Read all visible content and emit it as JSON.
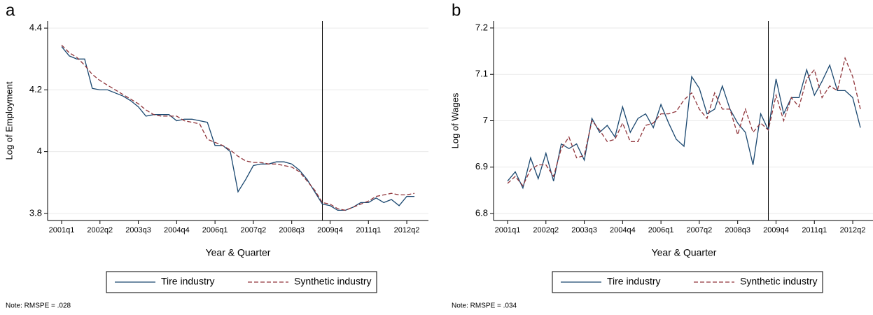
{
  "chart_data": [
    {
      "type": "line",
      "panel_label": "a",
      "y_label": "Log of Employment",
      "x_label": "Year & Quarter",
      "note": "Note: RMSPE = .028",
      "categories": [
        "2001q1",
        null,
        null,
        null,
        null,
        "2002q2",
        null,
        null,
        null,
        null,
        "2003q3",
        null,
        null,
        null,
        null,
        "2004q4",
        null,
        null,
        null,
        null,
        "2006q1",
        null,
        null,
        null,
        null,
        "2007q2",
        null,
        null,
        null,
        null,
        "2008q3",
        null,
        null,
        null,
        null,
        "2009q4",
        null,
        null,
        null,
        null,
        "2011q1",
        null,
        null,
        null,
        null,
        "2012q2",
        null
      ],
      "vline": 34,
      "ylim": [
        3.777,
        4.423
      ],
      "yticks": [
        3.8,
        4,
        4.2,
        4.4
      ],
      "grid": true,
      "series": [
        {
          "name": "Tire industry",
          "color": "#1a476f",
          "dashed": false,
          "values": [
            4.34,
            4.31,
            4.3,
            4.3,
            4.205,
            4.2,
            4.2,
            4.19,
            4.18,
            4.165,
            4.145,
            4.115,
            4.12,
            4.12,
            4.12,
            4.1,
            4.105,
            4.105,
            4.1,
            4.095,
            4.02,
            4.02,
            4.0,
            3.87,
            3.91,
            3.955,
            3.96,
            3.96,
            3.967,
            3.967,
            3.96,
            3.94,
            3.91,
            3.87,
            3.83,
            3.825,
            3.81,
            3.81,
            3.82,
            3.835,
            3.835,
            3.85,
            3.835,
            3.845,
            3.825,
            3.855,
            3.855
          ]
        },
        {
          "name": "Synthetic industry",
          "color": "#90353b",
          "dashed": true,
          "values": [
            4.345,
            4.32,
            4.305,
            4.28,
            4.25,
            4.23,
            4.215,
            4.2,
            4.185,
            4.17,
            4.155,
            4.135,
            4.12,
            4.115,
            4.115,
            4.115,
            4.1,
            4.095,
            4.09,
            4.04,
            4.03,
            4.02,
            4.005,
            3.985,
            3.97,
            3.965,
            3.965,
            3.96,
            3.96,
            3.955,
            3.95,
            3.935,
            3.905,
            3.875,
            3.835,
            3.83,
            3.815,
            3.81,
            3.82,
            3.83,
            3.84,
            3.855,
            3.86,
            3.865,
            3.86,
            3.86,
            3.865
          ]
        }
      ]
    },
    {
      "type": "line",
      "panel_label": "b",
      "y_label": "Log of Wages",
      "x_label": "Year & Quarter",
      "note": "Note: RMSPE = .034",
      "categories": [
        "2001q1",
        null,
        null,
        null,
        null,
        "2002q2",
        null,
        null,
        null,
        null,
        "2003q3",
        null,
        null,
        null,
        null,
        "2004q4",
        null,
        null,
        null,
        null,
        "2006q1",
        null,
        null,
        null,
        null,
        "2007q2",
        null,
        null,
        null,
        null,
        "2008q3",
        null,
        null,
        null,
        null,
        "2009q4",
        null,
        null,
        null,
        null,
        "2011q1",
        null,
        null,
        null,
        null,
        "2012q2",
        null
      ],
      "vline": 34,
      "ylim": [
        6.785,
        7.215
      ],
      "yticks": [
        6.8,
        6.9,
        7,
        7.1,
        7.2
      ],
      "grid": true,
      "series": [
        {
          "name": "Tire industry",
          "color": "#1a476f",
          "dashed": false,
          "values": [
            6.87,
            6.89,
            6.855,
            6.92,
            6.875,
            6.93,
            6.87,
            6.95,
            6.94,
            6.95,
            6.915,
            7.005,
            6.975,
            6.99,
            6.965,
            7.03,
            6.975,
            7.005,
            7.015,
            6.985,
            7.035,
            6.995,
            6.96,
            6.945,
            7.095,
            7.07,
            7.015,
            7.025,
            7.075,
            7.025,
            6.995,
            6.975,
            6.905,
            7.015,
            6.98,
            7.09,
            7.015,
            7.05,
            7.05,
            7.11,
            7.055,
            7.085,
            7.12,
            7.065,
            7.065,
            7.05,
            6.985
          ]
        },
        {
          "name": "Synthetic industry",
          "color": "#90353b",
          "dashed": true,
          "values": [
            6.865,
            6.88,
            6.86,
            6.895,
            6.905,
            6.905,
            6.88,
            6.94,
            6.965,
            6.92,
            6.925,
            7.0,
            6.98,
            6.955,
            6.96,
            6.995,
            6.955,
            6.955,
            6.99,
            6.995,
            7.015,
            7.015,
            7.02,
            7.045,
            7.06,
            7.025,
            7.005,
            7.06,
            7.025,
            7.025,
            6.97,
            7.025,
            6.975,
            6.995,
            6.98,
            7.055,
            7.0,
            7.05,
            7.03,
            7.09,
            7.11,
            7.05,
            7.075,
            7.065,
            7.135,
            7.095,
            7.025
          ]
        }
      ]
    }
  ]
}
